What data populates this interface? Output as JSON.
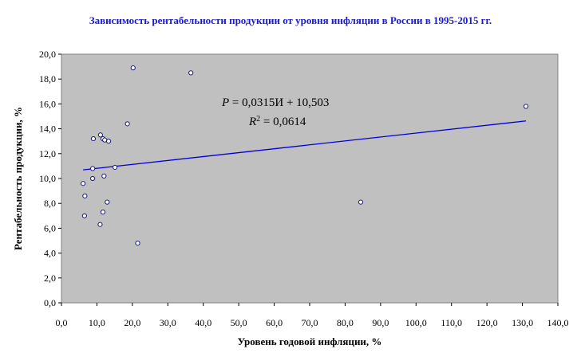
{
  "chart_data": {
    "type": "scatter",
    "title": "Зависимость рентабельности продукции от уровня инфляции в России в 1995-2015 гг.",
    "xlabel": "Уровень годовой инфляции, %",
    "ylabel": "Рентабельность продукции, %",
    "xlim": [
      0,
      140
    ],
    "ylim": [
      0,
      20
    ],
    "x_ticks": [
      "0,0",
      "10,0",
      "20,0",
      "30,0",
      "40,0",
      "50,0",
      "60,0",
      "70,0",
      "80,0",
      "90,0",
      "100,0",
      "110,0",
      "120,0",
      "130,0",
      "140,0"
    ],
    "y_ticks": [
      "0,0",
      "2,0",
      "4,0",
      "6,0",
      "8,0",
      "10,0",
      "12,0",
      "14,0",
      "16,0",
      "18,0",
      "20,0"
    ],
    "grid": false,
    "plot_background": "#c0c0c0",
    "title_color": "#1a1acc",
    "point_fill": "#ffffff",
    "point_stroke": "#1a1a80",
    "trendline_color": "#0000dd",
    "points": [
      {
        "x": 131.0,
        "y": 15.8
      },
      {
        "x": 84.4,
        "y": 8.1
      },
      {
        "x": 36.5,
        "y": 18.5
      },
      {
        "x": 20.2,
        "y": 18.9
      },
      {
        "x": 21.5,
        "y": 4.8
      },
      {
        "x": 18.6,
        "y": 14.4
      },
      {
        "x": 15.1,
        "y": 10.9
      },
      {
        "x": 12.0,
        "y": 10.2
      },
      {
        "x": 12.9,
        "y": 8.1
      },
      {
        "x": 11.7,
        "y": 7.3
      },
      {
        "x": 10.9,
        "y": 6.3
      },
      {
        "x": 11.0,
        "y": 13.5
      },
      {
        "x": 11.7,
        "y": 13.2
      },
      {
        "x": 12.2,
        "y": 13.1
      },
      {
        "x": 13.3,
        "y": 13.0
      },
      {
        "x": 9.0,
        "y": 13.2
      },
      {
        "x": 8.8,
        "y": 10.8
      },
      {
        "x": 8.8,
        "y": 10.0
      },
      {
        "x": 6.1,
        "y": 9.6
      },
      {
        "x": 6.6,
        "y": 8.6
      },
      {
        "x": 6.5,
        "y": 7.0
      }
    ],
    "trendline": {
      "x": [
        6.1,
        131.0
      ],
      "slope": 0.0315,
      "intercept": 10.503
    },
    "annotation": {
      "equation_lhs": "P",
      "equation_rhs": " = 0,0315И + 10,503",
      "r2_lhs": "R",
      "r2_sup": "2",
      "r2_rhs": " = 0,0614"
    }
  }
}
